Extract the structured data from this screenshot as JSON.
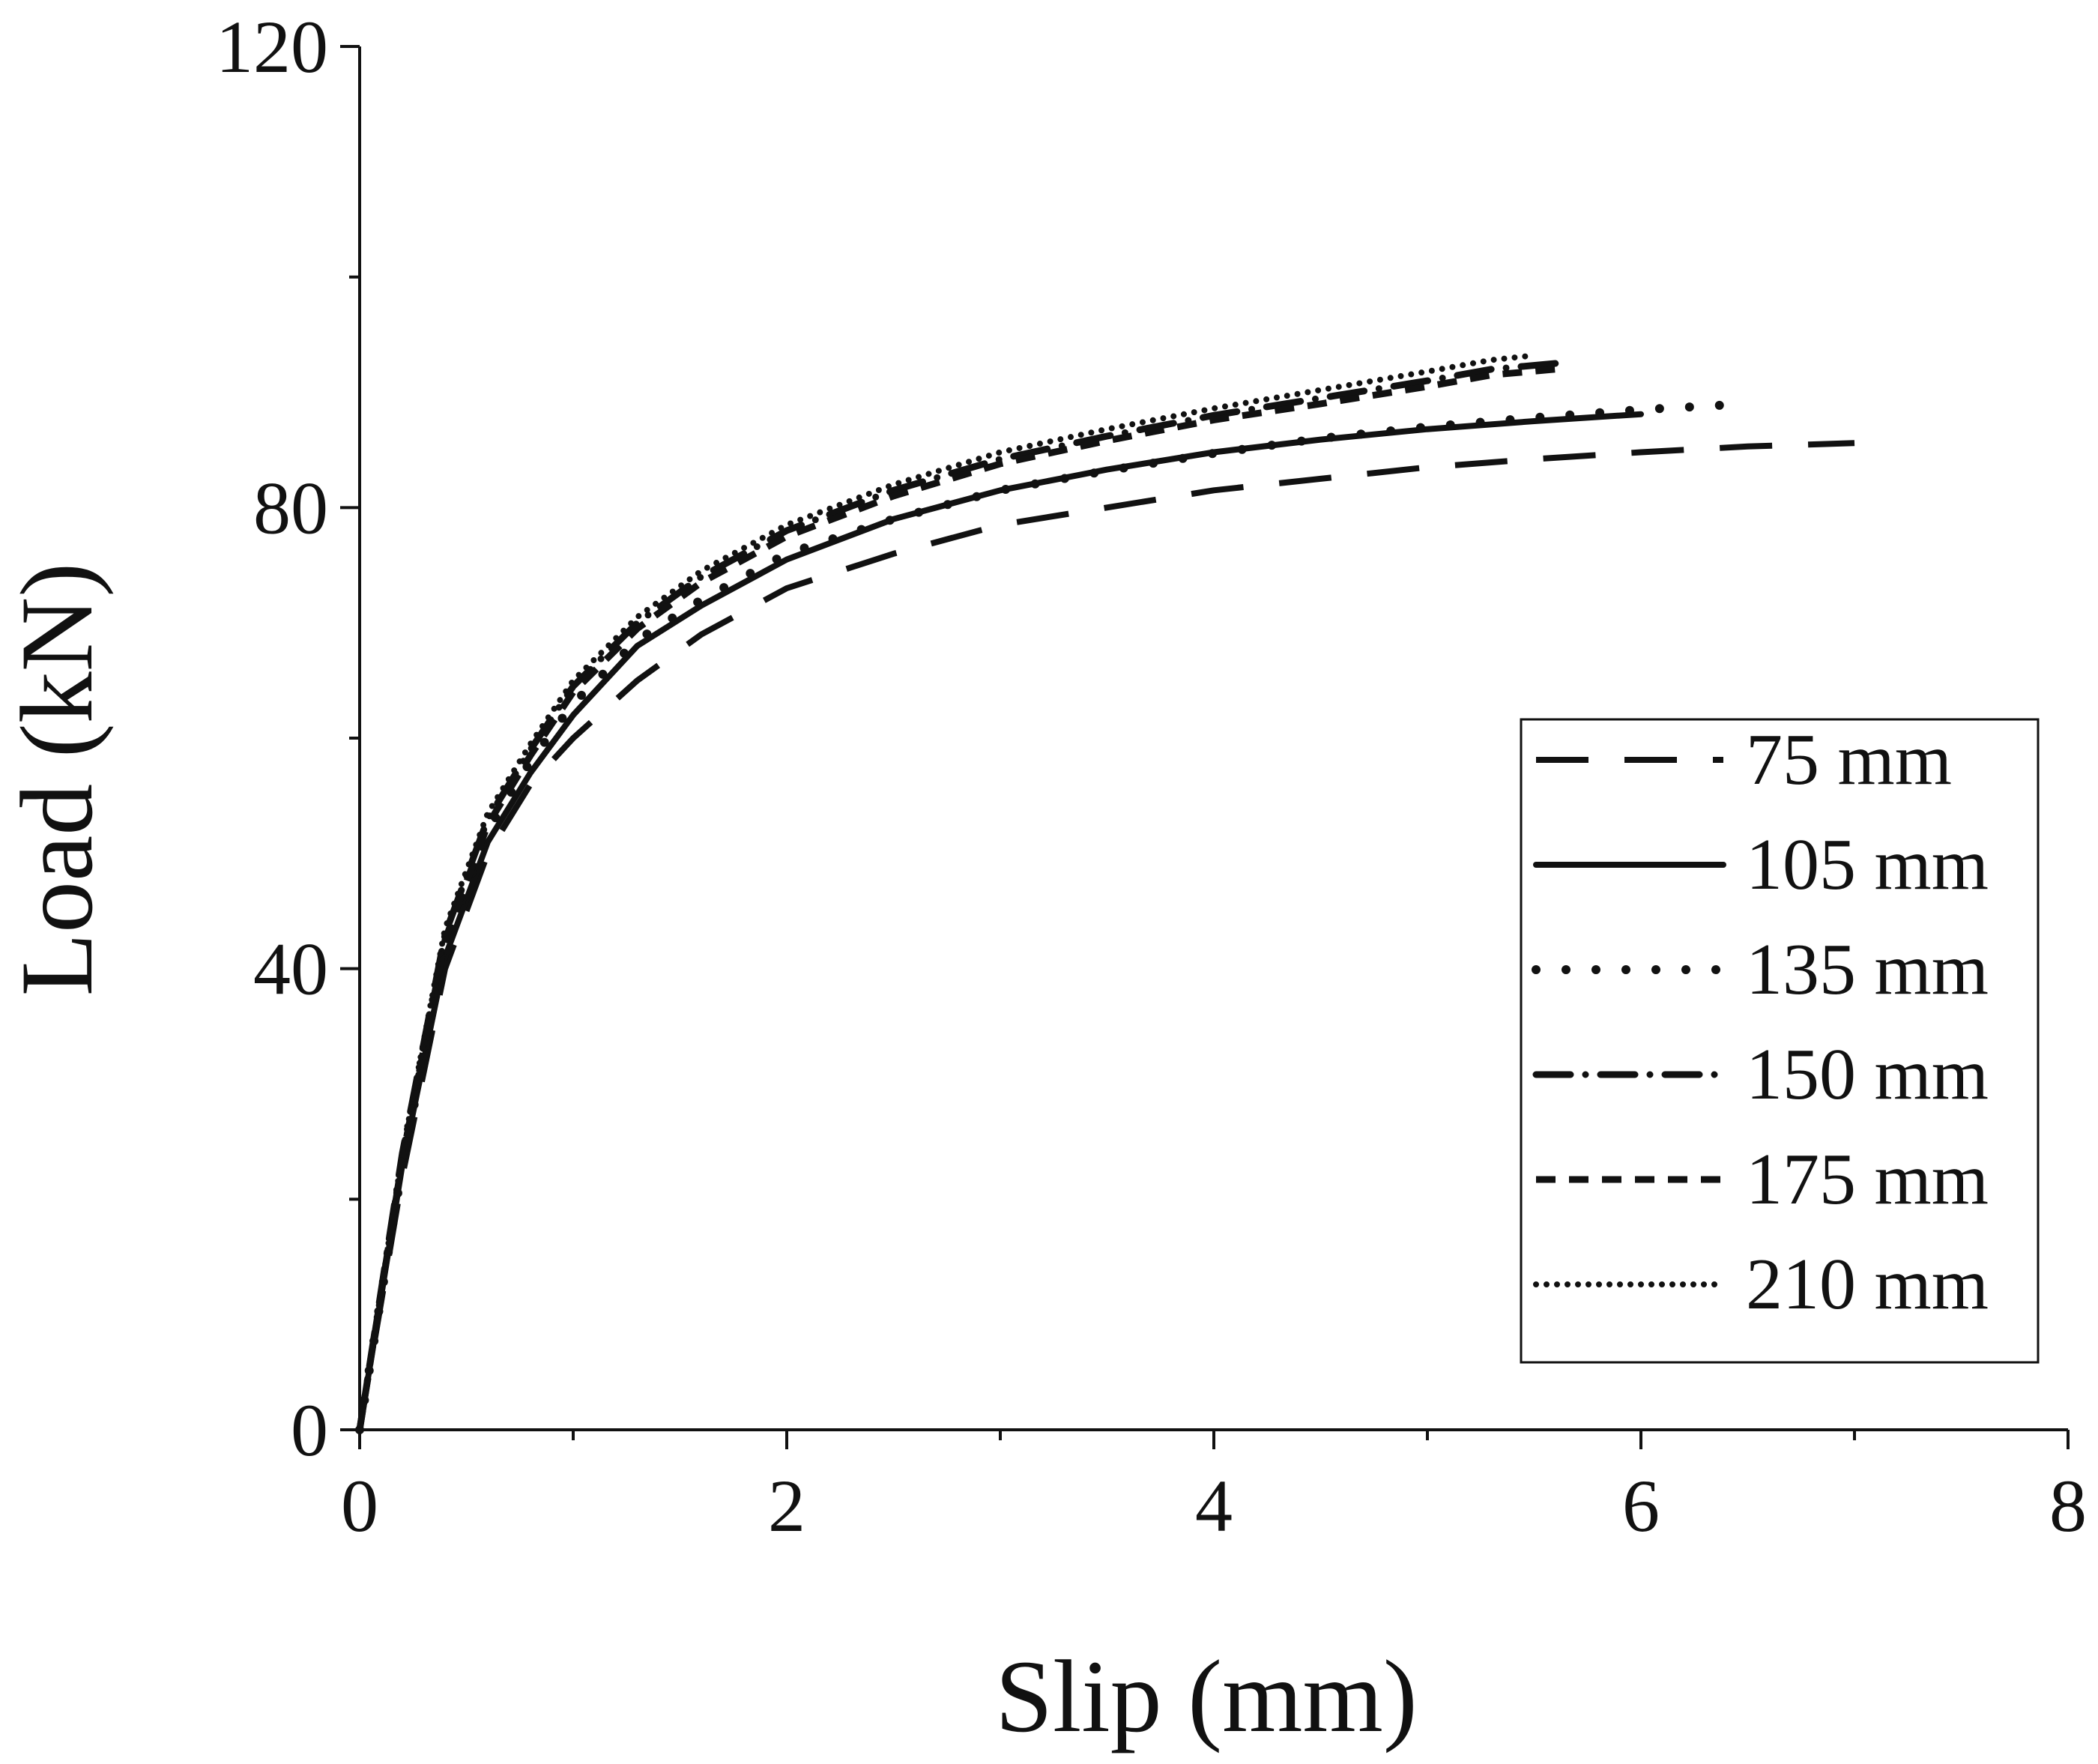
{
  "chart_data": {
    "type": "line",
    "title": "",
    "xlabel": "Slip (mm)",
    "ylabel": "Load (kN)",
    "xlim": [
      0,
      8
    ],
    "ylim": [
      0,
      120
    ],
    "xticks": [
      0,
      2,
      4,
      6,
      8
    ],
    "yticks": [
      0,
      40,
      80,
      120
    ],
    "xtick_labels": [
      "0",
      "2",
      "4",
      "6",
      "8"
    ],
    "ytick_labels": [
      "0",
      "40",
      "80",
      "120"
    ],
    "x_minor_step": 1,
    "y_minor_step": 20,
    "grid": false,
    "legend_position": "right",
    "line_color": "#111111",
    "series": [
      {
        "name": "75 mm",
        "style": "long-dash",
        "x": [
          0,
          0.2,
          0.4,
          0.6,
          0.8,
          1.0,
          1.3,
          1.6,
          2.0,
          2.5,
          3.0,
          3.5,
          4.0,
          4.5,
          5.0,
          5.5,
          6.0,
          6.5,
          7.0
        ],
        "y": [
          0,
          22,
          40,
          50,
          56,
          60,
          65,
          69,
          73,
          76,
          78.5,
          80,
          81.5,
          82.5,
          83.5,
          84.2,
          84.8,
          85.3,
          85.6
        ]
      },
      {
        "name": "105 mm",
        "style": "solid",
        "x": [
          0,
          0.2,
          0.4,
          0.6,
          0.8,
          1.0,
          1.3,
          1.6,
          2.0,
          2.5,
          3.0,
          3.5,
          4.0,
          4.5,
          5.0,
          5.5,
          6.0
        ],
        "y": [
          0,
          23,
          41,
          51,
          57,
          62,
          68,
          71.5,
          75.5,
          79,
          81.5,
          83.3,
          84.8,
          85.9,
          86.8,
          87.5,
          88.1
        ]
      },
      {
        "name": "135 mm",
        "style": "dot",
        "x": [
          0,
          0.2,
          0.4,
          0.6,
          0.8,
          1.0,
          1.3,
          1.6,
          2.0,
          2.5,
          3.0,
          3.5,
          4.0,
          4.5,
          5.0,
          5.5,
          6.0,
          6.4
        ],
        "y": [
          0,
          23,
          42,
          52,
          58,
          63,
          68.5,
          72,
          76,
          79,
          81.5,
          83.2,
          84.7,
          86,
          87,
          87.8,
          88.5,
          88.9
        ]
      },
      {
        "name": "150 mm",
        "style": "dash-dot",
        "x": [
          0,
          0.2,
          0.4,
          0.6,
          0.8,
          1.0,
          1.3,
          1.6,
          2.0,
          2.5,
          3.0,
          3.5,
          4.0,
          4.5,
          5.0,
          5.3,
          5.6
        ],
        "y": [
          0,
          24,
          43,
          53,
          59,
          64.5,
          70,
          74,
          78,
          81.5,
          84.2,
          86.2,
          88,
          89.5,
          91,
          92,
          92.5
        ]
      },
      {
        "name": "175 mm",
        "style": "short-dash",
        "x": [
          0,
          0.2,
          0.4,
          0.6,
          0.8,
          1.0,
          1.3,
          1.6,
          2.0,
          2.5,
          3.0,
          3.5,
          4.0,
          4.5,
          5.0,
          5.3,
          5.6
        ],
        "y": [
          0,
          23.5,
          42.5,
          52.5,
          58.5,
          64,
          69.5,
          73.5,
          77.5,
          81,
          83.8,
          85.8,
          87.6,
          89,
          90.5,
          91.5,
          92
        ]
      },
      {
        "name": "210 mm",
        "style": "fine-dot",
        "x": [
          0,
          0.2,
          0.4,
          0.6,
          0.8,
          1.0,
          1.3,
          1.6,
          2.0,
          2.5,
          3.0,
          3.5,
          4.0,
          4.5,
          5.0,
          5.3,
          5.5
        ],
        "y": [
          0,
          24,
          43.5,
          53.5,
          59.5,
          65,
          70.5,
          74.5,
          78.5,
          82,
          84.8,
          86.8,
          88.6,
          90.2,
          91.8,
          92.8,
          93.2
        ]
      }
    ]
  }
}
